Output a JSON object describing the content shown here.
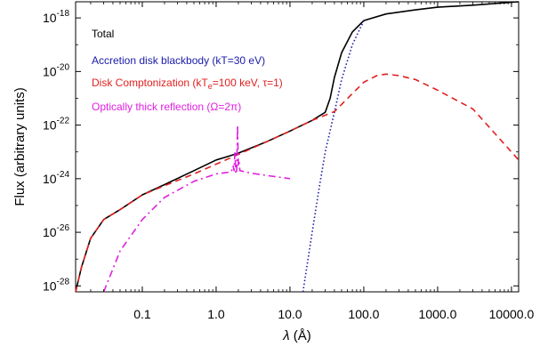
{
  "chart_data": {
    "type": "line",
    "title": "",
    "xlabel": "λ (Å)",
    "ylabel": "Flux (arbitrary units)",
    "xscale": "log",
    "yscale": "log",
    "xlim": [
      0.0125,
      12500
    ],
    "ylim": [
      6e-29,
      4e-18
    ],
    "grid": false,
    "legend_placement": "top-left",
    "x_ticks": [
      {
        "value": 0.1,
        "label": "0.1"
      },
      {
        "value": 1,
        "label": "1.0"
      },
      {
        "value": 10,
        "label": "10.0"
      },
      {
        "value": 100,
        "label": "100.0"
      },
      {
        "value": 1000,
        "label": "1000.0"
      },
      {
        "value": 10000,
        "label": "10000.0"
      }
    ],
    "y_ticks": [
      {
        "value": 1e-18,
        "base": "10",
        "exp": "-18"
      },
      {
        "value": 1e-20,
        "base": "10",
        "exp": "-20"
      },
      {
        "value": 1e-22,
        "base": "10",
        "exp": "-22"
      },
      {
        "value": 1e-24,
        "base": "10",
        "exp": "-24"
      },
      {
        "value": 1e-26,
        "base": "10",
        "exp": "-26"
      },
      {
        "value": 1e-28,
        "base": "10",
        "exp": "-28"
      }
    ],
    "series": [
      {
        "name": "Total",
        "color": "#000000",
        "style": "solid",
        "x": [
          0.0125,
          0.015,
          0.02,
          0.03,
          0.05,
          0.1,
          0.2,
          0.5,
          1,
          1.5,
          2,
          5,
          10,
          20,
          30,
          35,
          40,
          50,
          70,
          100,
          200,
          500,
          1000,
          3000,
          12500
        ],
        "y": [
          6e-29,
          5e-28,
          6e-27,
          3e-26,
          7e-26,
          2.5e-25,
          6e-25,
          2e-24,
          5e-24,
          7e-24,
          9e-24,
          2.5e-23,
          6e-23,
          1.5e-22,
          3e-22,
          1e-21,
          6e-21,
          5e-20,
          3e-19,
          8e-19,
          1.4e-18,
          2e-18,
          2.5e-18,
          3e-18,
          4e-18
        ]
      },
      {
        "name": "Accretion disk blackbody (kT=30 eV)",
        "color": "#1a1aa8",
        "style": "dotted",
        "x": [
          15,
          20,
          25,
          30,
          40,
          50,
          70,
          100
        ],
        "y": [
          6e-29,
          1e-26,
          5e-25,
          1e-23,
          3e-22,
          5e-21,
          1e-19,
          8e-19
        ]
      },
      {
        "name": "Disk Comptonization (kTe=100 keV, τ=1)",
        "color": "#e02020",
        "style": "dashed",
        "x": [
          0.0125,
          0.015,
          0.02,
          0.03,
          0.05,
          0.1,
          0.2,
          0.5,
          1,
          2,
          5,
          10,
          20,
          40,
          70,
          100,
          150,
          200,
          300,
          500,
          1000,
          3000,
          12500
        ],
        "y": [
          6e-29,
          5e-28,
          6e-27,
          3e-26,
          7e-26,
          2.5e-25,
          5.5e-25,
          1.5e-24,
          3.5e-24,
          8e-24,
          2.5e-23,
          6e-23,
          1.5e-22,
          3.2e-22,
          1.5e-21,
          4e-21,
          7e-21,
          8e-21,
          7e-21,
          5e-21,
          2e-21,
          4e-22,
          5e-24
        ]
      },
      {
        "name": "Optically thick reflection (Ω=2π)",
        "color": "#e020e0",
        "style": "dashdot",
        "x": [
          0.03,
          0.05,
          0.1,
          0.2,
          0.5,
          1,
          1.6,
          1.7,
          1.75,
          1.8,
          1.85,
          1.9,
          1.95,
          2,
          2.05,
          2.1,
          3,
          5,
          10
        ],
        "y": [
          6e-29,
          2e-27,
          3e-26,
          2e-25,
          8e-25,
          1.5e-24,
          1.8e-24,
          3e-24,
          2e-24,
          1e-23,
          1.5e-24,
          2e-24,
          1e-22,
          3e-24,
          4e-24,
          2e-24,
          1.6e-24,
          1.3e-24,
          1e-24
        ]
      }
    ],
    "legend": [
      {
        "text": "Total",
        "color": "#000000"
      },
      {
        "text": "Accretion disk blackbody (kT=30 eV)",
        "color": "#1a1aa8"
      },
      {
        "text": "Disk Comptonization (kT",
        "sub": "e",
        "after": "=100 keV, τ=1)",
        "color": "#e02020"
      },
      {
        "text": "Optically thick reflection (Ω=2π)",
        "color": "#e020e0"
      }
    ]
  }
}
